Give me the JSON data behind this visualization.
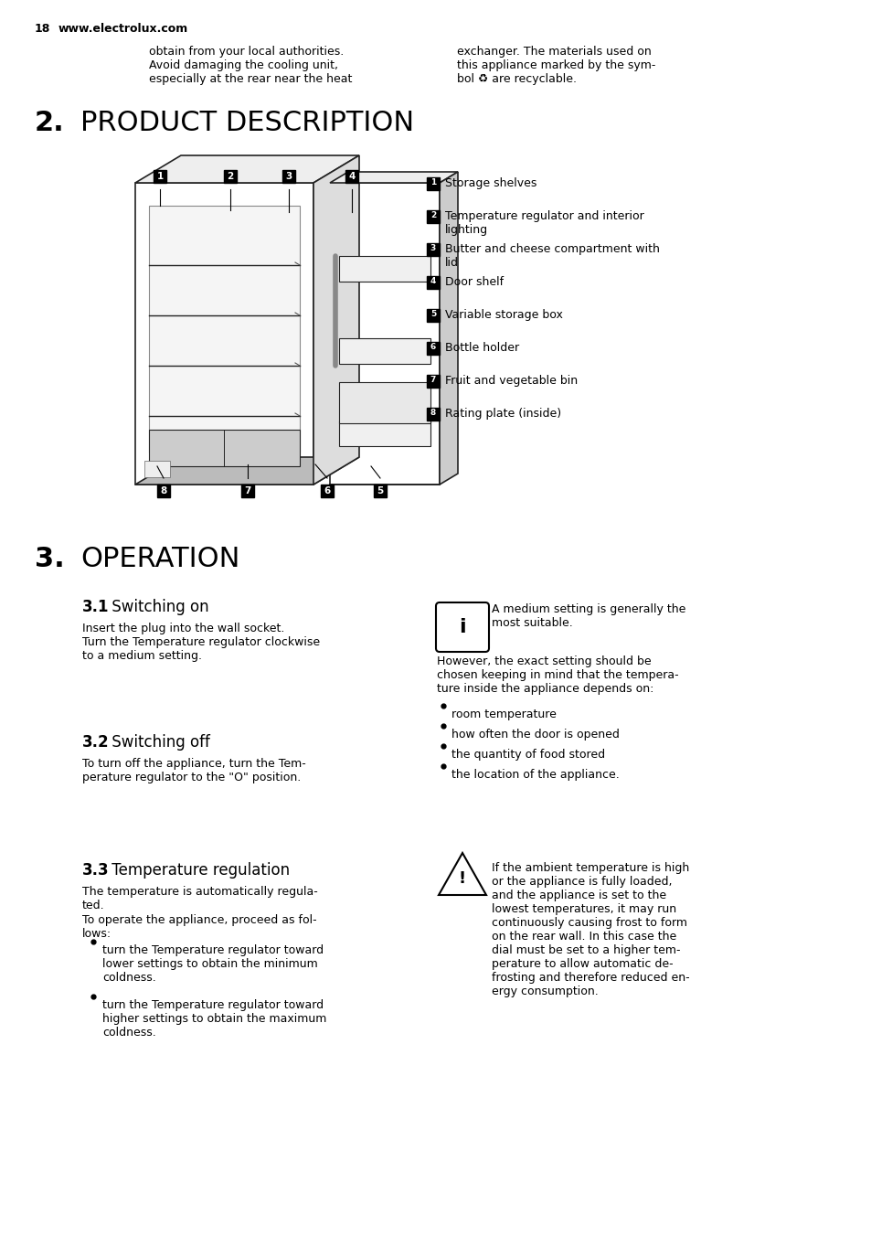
{
  "bg_color": "#ffffff",
  "page_num": "18",
  "website": "www.electrolux.com",
  "header_left_1": "obtain from your local authorities.",
  "header_left_2": "Avoid damaging the cooling unit,",
  "header_left_3": "especially at the rear near the heat",
  "header_right_1": "exchanger. The materials used on",
  "header_right_2": "this appliance marked by the sym-",
  "header_right_3": "bol ♻ are recyclable.",
  "section2_num": "2.",
  "section2_title": "PRODUCT DESCRIPTION",
  "product_items": [
    "Storage shelves",
    "Temperature regulator and interior\nlighting",
    "Butter and cheese compartment with\nlid",
    "Door shelf",
    "Variable storage box",
    "Bottle holder",
    "Fruit and vegetable bin",
    "Rating plate (inside)"
  ],
  "section3_num": "3.",
  "section3_title": "OPERATION",
  "sub31_num": "3.1",
  "sub31_title": " Switching on",
  "sub31_body": "Insert the plug into the wall socket.\nTurn the Temperature regulator clockwise\nto a medium setting.",
  "info_text": "A medium setting is generally the\nmost suitable.",
  "however_text": "However, the exact setting should be\nchosen keeping in mind that the tempera-\nture inside the appliance depends on:",
  "bullets_right": [
    "room temperature",
    "how often the door is opened",
    "the quantity of food stored",
    "the location of the appliance."
  ],
  "sub32_num": "3.2",
  "sub32_title": " Switching off",
  "sub32_body": "To turn off the appliance, turn the Tem-\nperature regulator to the \"O\" position.",
  "sub33_num": "3.3",
  "sub33_title": " Temperature regulation",
  "sub33_body1": "The temperature is automatically regula-\nted.",
  "sub33_body2": "To operate the appliance, proceed as fol-\nlows:",
  "sub33_bullets": [
    "turn the Temperature regulator toward\nlower settings to obtain the minimum\ncoldness.",
    "turn the Temperature regulator toward\nhigher settings to obtain the maximum\ncoldness."
  ],
  "warning_text": "If the ambient temperature is high\nor the appliance is fully loaded,\nand the appliance is set to the\nlowest temperatures, it may run\ncontinuously causing frost to form\non the rear wall. In this case the\ndial must be set to a higher tem-\nperature to allow automatic de-\nfrosting and therefore reduced en-\nergy consumption.",
  "lm": 38,
  "col2": 478,
  "indent": 90,
  "sub_indent": 108
}
